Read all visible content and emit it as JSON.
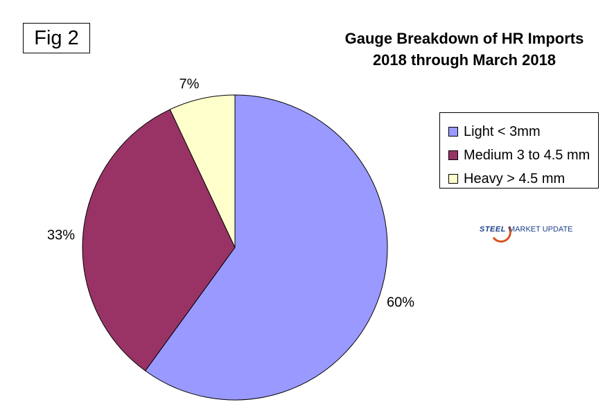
{
  "fig_label": "Fig 2",
  "title_line1": "Gauge Breakdown of HR Imports",
  "title_line2": "2018 through March 2018",
  "logo": {
    "steel": "STEEL",
    "rest": "MARKET UPDATE"
  },
  "colors": {
    "light": "#9999ff",
    "medium": "#993366",
    "heavy": "#ffffcc"
  },
  "chart_data": {
    "type": "pie",
    "title": "Gauge Breakdown of HR Imports 2018 through March 2018",
    "start_angle": "12 o'clock",
    "direction": "clockwise",
    "legend_position": "right",
    "slices": [
      {
        "name": "Light < 3mm",
        "value": 60,
        "label": "60%",
        "color": "#9999ff"
      },
      {
        "name": "Medium 3 to 4.5 mm",
        "value": 33,
        "label": "33%",
        "color": "#993366"
      },
      {
        "name": "Heavy > 4.5 mm",
        "value": 7,
        "label": "7%",
        "color": "#ffffcc"
      }
    ]
  }
}
